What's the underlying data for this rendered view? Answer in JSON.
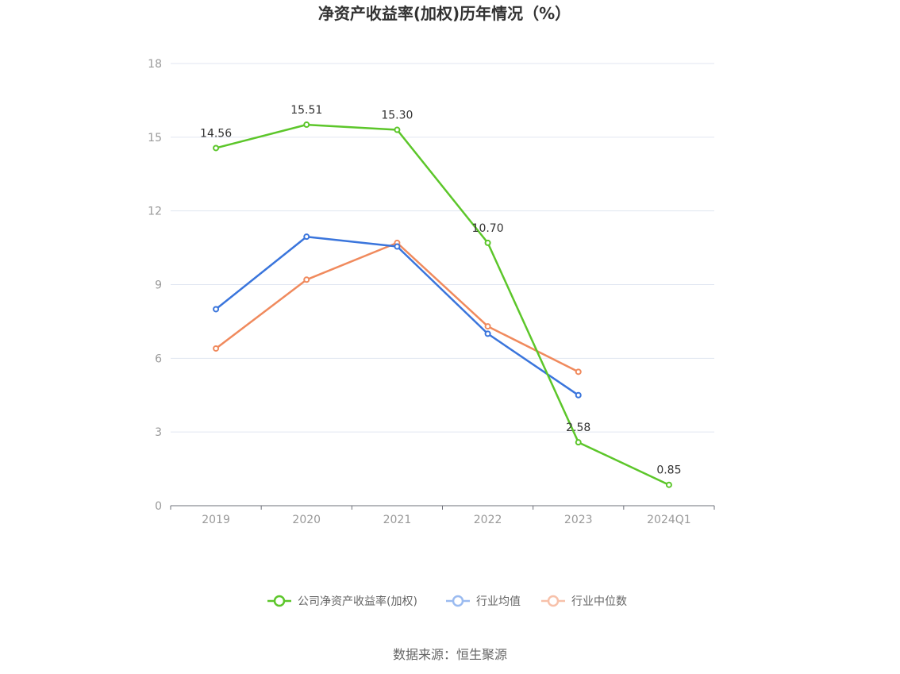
{
  "chart_data": {
    "type": "line",
    "title": "净资产收益率(加权)历年情况（%）",
    "categories": [
      "2019",
      "2020",
      "2021",
      "2022",
      "2023",
      "2024Q1"
    ],
    "ylim": [
      0,
      18
    ],
    "yticks": [
      "0",
      "3",
      "6",
      "9",
      "12",
      "15",
      "18"
    ],
    "grid": true,
    "legend_position": "bottom",
    "series": [
      {
        "name": "公司净资产收益率(加权)",
        "color": "#5cc62a",
        "values": [
          14.56,
          15.51,
          15.3,
          10.7,
          2.58,
          0.85
        ],
        "labels": [
          "14.56",
          "15.51",
          "15.30",
          "10.70",
          "2.58",
          "0.85"
        ]
      },
      {
        "name": "行业均值",
        "color": "#3a75dc",
        "legend_color": "#9bbbf0",
        "values": [
          8.0,
          10.95,
          10.55,
          7.0,
          4.5,
          null
        ]
      },
      {
        "name": "行业中位数",
        "color": "#f08a5d",
        "legend_color": "#f7c1aa",
        "values": [
          6.4,
          9.2,
          10.7,
          7.3,
          5.45,
          null
        ]
      }
    ]
  },
  "footer": {
    "source": "数据来源：恒生聚源"
  }
}
